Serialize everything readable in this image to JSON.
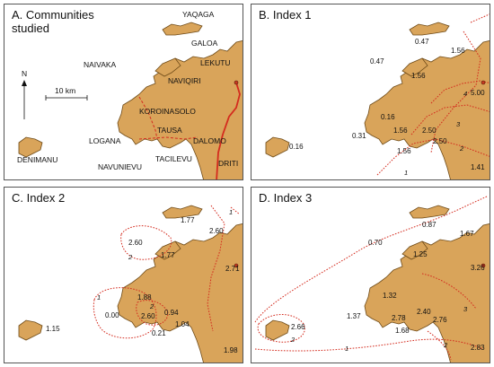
{
  "panels": {
    "a": {
      "title_line1": "A. Communities",
      "title_line2": "studied"
    },
    "b": {
      "title": "B. Index 1"
    },
    "c": {
      "title": "C. Index 2"
    },
    "d": {
      "title": "D. Index 3"
    }
  },
  "compass": {
    "label": "N"
  },
  "scale": {
    "label": "10 km"
  },
  "communities": {
    "yaqaga": "YAQAGA",
    "galoa": "GALOA",
    "lekutu": "LEKUTU",
    "naivaka": "NAIVAKA",
    "naviqiri": "NAVIQIRI",
    "koroinasolo": "KOROINASOLO",
    "tausa": "TAUSA",
    "logana": "LOGANA",
    "dalomo": "DALOMO",
    "denimanu": "DENIMANU",
    "navunievu": "NAVUNIEVU",
    "tacilevu": "TACILEVU",
    "driti": "DRITI"
  },
  "index1": {
    "values": {
      "yaqaga": "0.47",
      "lekutu": "1.56",
      "naivaka": "0.47",
      "naviqiri": "1.56",
      "koroinasolo": "0.16",
      "logana": "0.31",
      "tausa_left": "1.56",
      "tausa_right": "2.50",
      "dalomo": "2.50",
      "navunievu": "1.56",
      "denimanu": "0.16",
      "east": "5.00",
      "driti": "1.41"
    },
    "isolines": [
      "1",
      "2",
      "3",
      "4"
    ]
  },
  "index2": {
    "values": {
      "yaqaga": "1.77",
      "lekutu": "2.60",
      "naivaka": "2.60",
      "naviqiri": "1.77",
      "koroinasolo": "1.88",
      "logana": "0.00",
      "tausa": "2.60",
      "dalomo": "0.94",
      "navunievu": "0.21",
      "tacilevu": "1.04",
      "denimanu": "1.15",
      "east": "2.71",
      "driti": "1.98"
    },
    "isolines": [
      "1",
      "2",
      "1",
      "2"
    ]
  },
  "index3": {
    "values": {
      "yaqaga": "0.87",
      "lekutu": "1.67",
      "naivaka": "0.70",
      "naviqiri": "1.25",
      "koroinasolo": "1.32",
      "logana": "1.37",
      "tausa_left": "2.78",
      "tausa_right": "2.40",
      "dalomo": "2.76",
      "navunievu": "1.68",
      "denimanu": "2.66",
      "east": "3.26",
      "driti": "2.83"
    },
    "isolines": [
      "1",
      "2",
      "3",
      "2",
      "2"
    ]
  }
}
